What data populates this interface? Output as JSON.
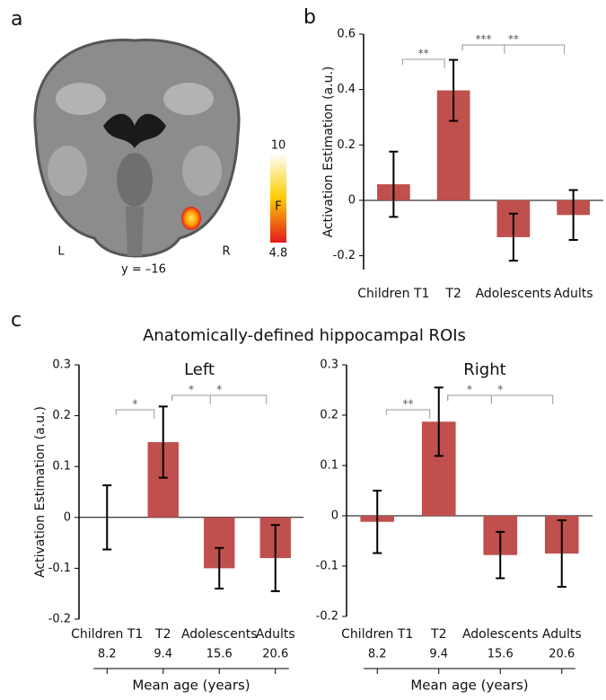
{
  "panel_labels": [
    "a",
    "b",
    "c"
  ],
  "brain": {
    "left_label": "L",
    "right_label": "R",
    "slice": "y = –16",
    "colorbar": {
      "max": 10,
      "label": "F",
      "min": 4.8
    }
  },
  "section_title": "Anatomically-defined hippocampal ROIs",
  "chart_data": [
    {
      "type": "bar",
      "ylabel": "Activation Estimation (a.u.)",
      "categories": [
        "Children T1",
        "T2",
        "Adolescents",
        "Adults"
      ],
      "values": [
        0.058,
        0.397,
        -0.133,
        -0.053
      ],
      "errors": [
        0.118,
        0.11,
        0.085,
        0.09
      ],
      "color": "#c0504d",
      "ylim": [
        -0.25,
        0.6
      ],
      "yticks": [
        -0.2,
        0,
        0.2,
        0.4,
        0.6
      ],
      "significance": [
        {
          "between": [
            0,
            1
          ],
          "label": "**"
        },
        {
          "between": [
            1,
            2
          ],
          "label": "***"
        },
        {
          "between": [
            1,
            3
          ],
          "label": "**"
        }
      ]
    },
    {
      "type": "bar",
      "title": "Left",
      "ylabel": "Activation Estimation (a.u.)",
      "categories": [
        "Children T1",
        "T2",
        "Adolescents",
        "Adults"
      ],
      "values": [
        0.0,
        0.148,
        -0.1,
        -0.08
      ],
      "errors": [
        0.063,
        0.07,
        0.04,
        0.065
      ],
      "color": "#c0504d",
      "ylim": [
        -0.2,
        0.3
      ],
      "yticks": [
        -0.2,
        -0.1,
        0,
        0.1,
        0.2,
        0.3
      ],
      "significance": [
        {
          "between": [
            0,
            1
          ],
          "label": "*"
        },
        {
          "between": [
            1,
            2
          ],
          "label": "*"
        },
        {
          "between": [
            1,
            3
          ],
          "label": "*"
        }
      ],
      "ages": [
        8.2,
        9.4,
        15.6,
        20.6
      ],
      "age_label": "Mean age (years)"
    },
    {
      "type": "bar",
      "title": "Right",
      "categories": [
        "Children T1",
        "T2",
        "Adolescents",
        "Adults"
      ],
      "values": [
        -0.012,
        0.187,
        -0.078,
        -0.075
      ],
      "errors": [
        0.062,
        0.068,
        0.046,
        0.066
      ],
      "color": "#c0504d",
      "ylim": [
        -0.2,
        0.3
      ],
      "yticks": [
        -0.2,
        -0.1,
        0,
        0.1,
        0.2,
        0.3
      ],
      "significance": [
        {
          "between": [
            0,
            1
          ],
          "label": "**"
        },
        {
          "between": [
            1,
            2
          ],
          "label": "*"
        },
        {
          "between": [
            1,
            3
          ],
          "label": "*"
        }
      ],
      "ages": [
        8.2,
        9.4,
        15.6,
        20.6
      ],
      "age_label": "Mean age (years)"
    }
  ]
}
